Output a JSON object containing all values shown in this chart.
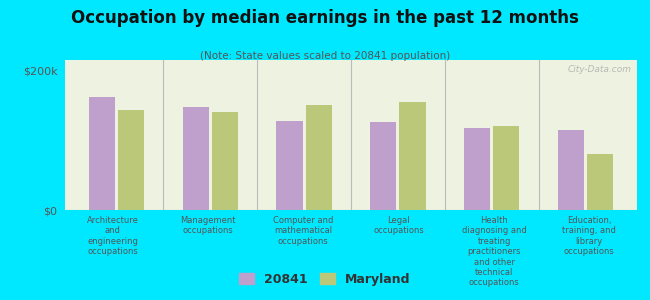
{
  "title": "Occupation by median earnings in the past 12 months",
  "subtitle": "(Note: State values scaled to 20841 population)",
  "background_color": "#00e8ff",
  "plot_bg_color": "#eef2e0",
  "categories": [
    "Architecture\nand\nengineering\noccupations",
    "Management\noccupations",
    "Computer and\nmathematical\noccupations",
    "Legal\noccupations",
    "Health\ndiagnosing and\ntreating\npractitioners\nand other\ntechnical\noccupations",
    "Education,\ntraining, and\nlibrary\noccupations"
  ],
  "values_20841": [
    162000,
    148000,
    128000,
    126000,
    118000,
    115000
  ],
  "values_maryland": [
    143000,
    141000,
    150000,
    155000,
    120000,
    80000
  ],
  "color_20841": "#bf9fcc",
  "color_maryland": "#bbc87a",
  "ylim": [
    0,
    215000
  ],
  "yticks": [
    0,
    200000
  ],
  "ytick_labels": [
    "$0",
    "$200k"
  ],
  "legend_labels": [
    "20841",
    "Maryland"
  ],
  "watermark": "City-Data.com"
}
